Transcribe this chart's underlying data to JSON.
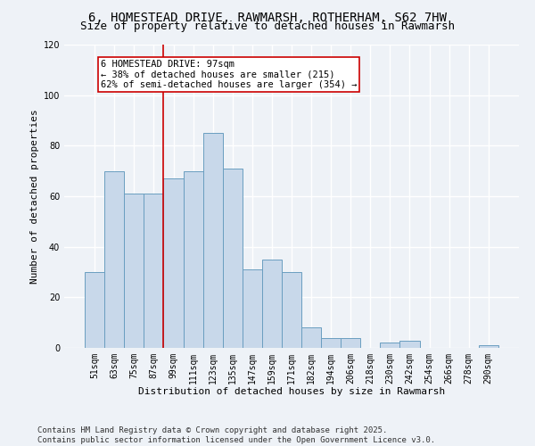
{
  "title": "6, HOMESTEAD DRIVE, RAWMARSH, ROTHERHAM, S62 7HW",
  "subtitle": "Size of property relative to detached houses in Rawmarsh",
  "xlabel": "Distribution of detached houses by size in Rawmarsh",
  "ylabel": "Number of detached properties",
  "bar_labels": [
    "51sqm",
    "63sqm",
    "75sqm",
    "87sqm",
    "99sqm",
    "111sqm",
    "123sqm",
    "135sqm",
    "147sqm",
    "159sqm",
    "171sqm",
    "182sqm",
    "194sqm",
    "206sqm",
    "218sqm",
    "230sqm",
    "242sqm",
    "254sqm",
    "266sqm",
    "278sqm",
    "290sqm"
  ],
  "bar_values": [
    30,
    70,
    61,
    61,
    67,
    70,
    85,
    71,
    31,
    35,
    30,
    8,
    4,
    4,
    0,
    2,
    3,
    0,
    0,
    0,
    1
  ],
  "bar_color": "#c8d8ea",
  "bar_edge_color": "#6a9ec0",
  "vline_index": 3.5,
  "vline_color": "#cc0000",
  "annotation_text": "6 HOMESTEAD DRIVE: 97sqm\n← 38% of detached houses are smaller (215)\n62% of semi-detached houses are larger (354) →",
  "annotation_box_color": "#ffffff",
  "annotation_box_edge": "#cc0000",
  "ylim": [
    0,
    120
  ],
  "yticks": [
    0,
    20,
    40,
    60,
    80,
    100,
    120
  ],
  "footer": "Contains HM Land Registry data © Crown copyright and database right 2025.\nContains public sector information licensed under the Open Government Licence v3.0.",
  "bg_color": "#eef2f7",
  "grid_color": "#ffffff",
  "title_fontsize": 10,
  "subtitle_fontsize": 9,
  "axis_label_fontsize": 8,
  "tick_fontsize": 7,
  "annotation_fontsize": 7.5,
  "footer_fontsize": 6.5
}
